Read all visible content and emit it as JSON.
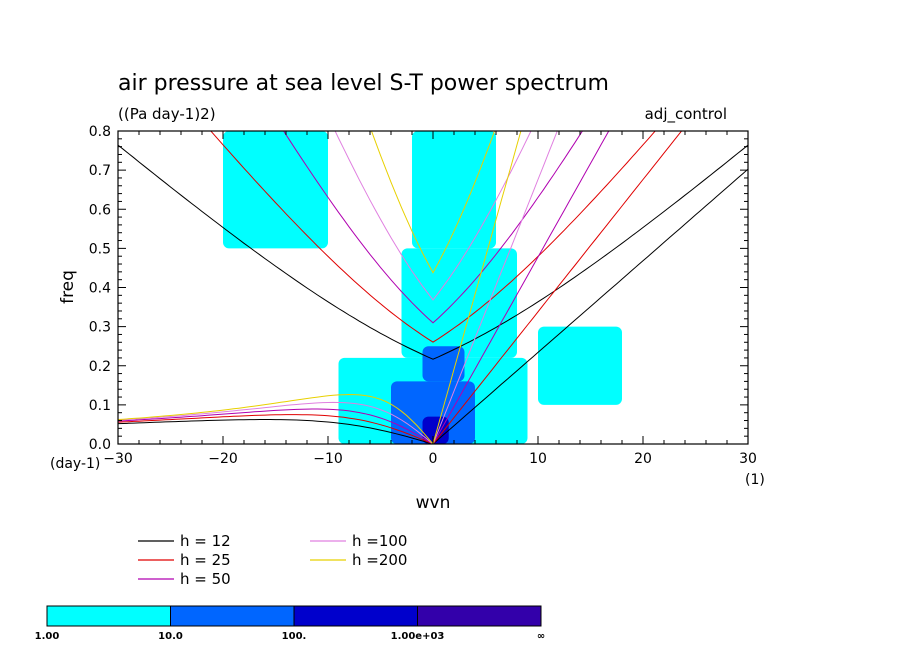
{
  "chart_data": {
    "type": "heatmap",
    "title": "air pressure at sea level S-T power spectrum",
    "subtitle": "((Pa day-1)2)",
    "run_label": "adj_control",
    "xlabel": "wvn",
    "ylabel": "freq",
    "x_unit_label": "(1)",
    "y_unit_label": "(day-1)",
    "xlim": [
      -30,
      30
    ],
    "ylim": [
      0,
      0.8
    ],
    "x_ticks": [
      "-30",
      "-20",
      "-10",
      "0",
      "10",
      "20",
      "30"
    ],
    "y_ticks": [
      "0.0",
      "0.1",
      "0.2",
      "0.3",
      "0.4",
      "0.5",
      "0.6",
      "0.7",
      "0.8"
    ],
    "dispersion_curves": [
      {
        "name": "h = 12",
        "h": 12,
        "color": "#000000"
      },
      {
        "name": "h = 25",
        "h": 25,
        "color": "#e00000"
      },
      {
        "name": "h = 50",
        "h": 50,
        "color": "#b000b0"
      },
      {
        "name": "h =100",
        "h": 100,
        "color": "#e080e0"
      },
      {
        "name": "h =200",
        "h": 200,
        "color": "#e8d000"
      }
    ],
    "colorbar": {
      "levels": [
        "1.00",
        "10.0",
        "100.",
        "1.00e+03",
        "∞"
      ],
      "colors": [
        "#00ffff",
        "#0066ff",
        "#0000cc",
        "#3300aa"
      ]
    },
    "power_regions": [
      {
        "level": 0,
        "x": [
          -9,
          9
        ],
        "y": [
          0.0,
          0.22
        ]
      },
      {
        "level": 0,
        "x": [
          -3,
          8
        ],
        "y": [
          0.22,
          0.5
        ]
      },
      {
        "level": 0,
        "x": [
          -2,
          6
        ],
        "y": [
          0.5,
          0.8
        ]
      },
      {
        "level": 0,
        "x": [
          -20,
          -10
        ],
        "y": [
          0.5,
          0.8
        ]
      },
      {
        "level": 0,
        "x": [
          10,
          18
        ],
        "y": [
          0.1,
          0.3
        ]
      },
      {
        "level": 1,
        "x": [
          -4,
          4
        ],
        "y": [
          0.0,
          0.16
        ]
      },
      {
        "level": 1,
        "x": [
          -1,
          3
        ],
        "y": [
          0.16,
          0.25
        ]
      },
      {
        "level": 2,
        "x": [
          -1,
          1.5
        ],
        "y": [
          0.0,
          0.07
        ]
      }
    ]
  }
}
